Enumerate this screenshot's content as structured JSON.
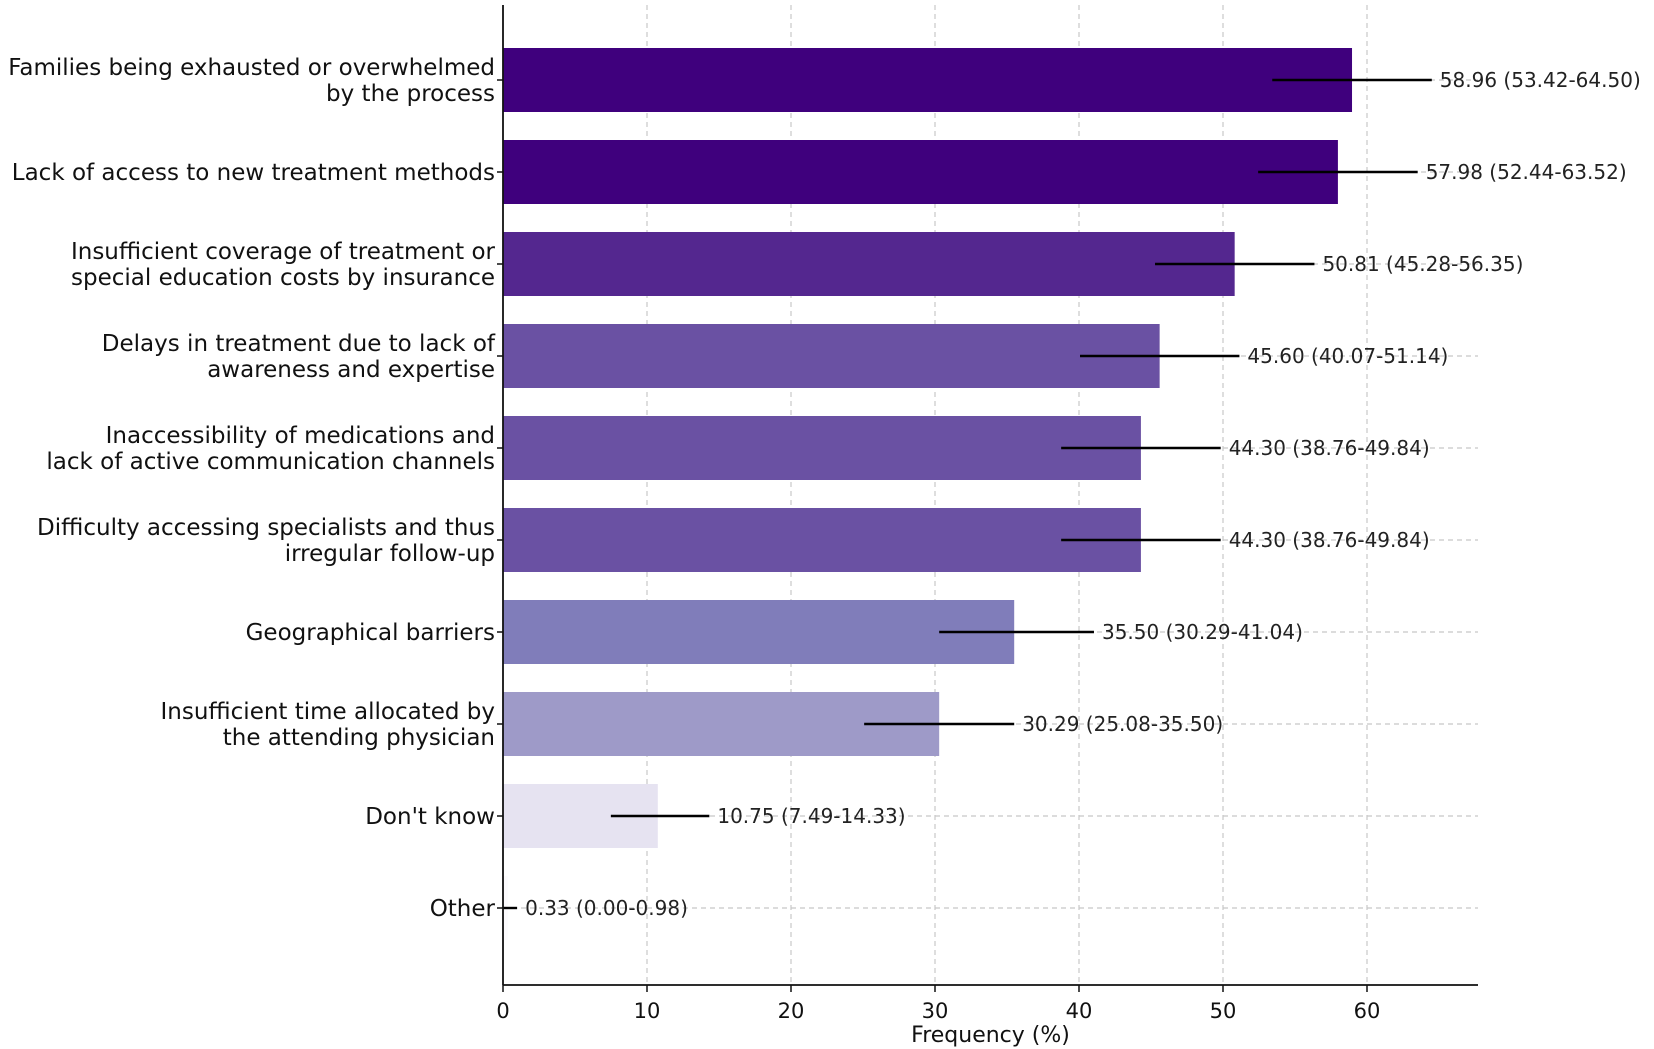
{
  "chart_data": {
    "type": "bar",
    "orientation": "horizontal",
    "title": "",
    "xlabel": "Frequency (%)",
    "ylabel": "",
    "xlim": [
      0,
      68
    ],
    "xticks": [
      0,
      10,
      20,
      30,
      40,
      50,
      60
    ],
    "grid": true,
    "categories": [
      {
        "lines": [
          "Families being exhausted or overwhelmed",
          "by the process"
        ],
        "value": 58.96,
        "ci_low": 53.42,
        "ci_high": 64.5,
        "label": "58.96 (53.42-64.50)",
        "color": "#3f007d"
      },
      {
        "lines": [
          "Lack of access to new treatment methods"
        ],
        "value": 57.98,
        "ci_low": 52.44,
        "ci_high": 63.52,
        "label": "57.98 (52.44-63.52)",
        "color": "#3f007d"
      },
      {
        "lines": [
          "Insufficient coverage of treatment or",
          "special education costs by insurance"
        ],
        "value": 50.81,
        "ci_low": 45.28,
        "ci_high": 56.35,
        "label": "50.81 (45.28-56.35)",
        "color": "#54278f"
      },
      {
        "lines": [
          "Delays in treatment due to lack of",
          "awareness and expertise"
        ],
        "value": 45.6,
        "ci_low": 40.07,
        "ci_high": 51.14,
        "label": "45.60 (40.07-51.14)",
        "color": "#6a51a3"
      },
      {
        "lines": [
          "Inaccessibility of medications and",
          "lack of active communication channels"
        ],
        "value": 44.3,
        "ci_low": 38.76,
        "ci_high": 49.84,
        "label": "44.30 (38.76-49.84)",
        "color": "#6a51a3"
      },
      {
        "lines": [
          "Difficulty accessing specialists and thus",
          "irregular follow-up"
        ],
        "value": 44.3,
        "ci_low": 38.76,
        "ci_high": 49.84,
        "label": "44.30 (38.76-49.84)",
        "color": "#6a51a3"
      },
      {
        "lines": [
          "Geographical barriers"
        ],
        "value": 35.5,
        "ci_low": 30.29,
        "ci_high": 41.04,
        "label": "35.50 (30.29-41.04)",
        "color": "#807dba"
      },
      {
        "lines": [
          "Insufficient time allocated by",
          "the attending physician"
        ],
        "value": 30.29,
        "ci_low": 25.08,
        "ci_high": 35.5,
        "label": "30.29 (25.08-35.50)",
        "color": "#9e9ac8"
      },
      {
        "lines": [
          "Don't know"
        ],
        "value": 10.75,
        "ci_low": 7.49,
        "ci_high": 14.33,
        "label": "10.75 (7.49-14.33)",
        "color": "#e6e3f1"
      },
      {
        "lines": [
          "Other"
        ],
        "value": 0.33,
        "ci_low": 0.0,
        "ci_high": 0.98,
        "label": "0.33 (0.00-0.98)",
        "color": "#fcfbfd"
      }
    ]
  }
}
